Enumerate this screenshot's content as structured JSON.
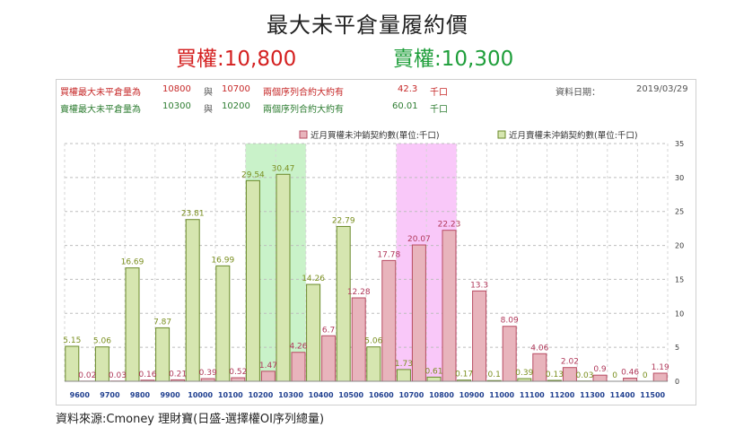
{
  "title": "最大未平倉量履約價",
  "subtitle_call": "買權:10,800",
  "subtitle_put": "賣權:10,300",
  "info": {
    "call_line": {
      "label": "買權最大未平倉量為",
      "v1": "10800",
      "mid": "與",
      "v2": "10700",
      "desc": "兩個序列合約大約有",
      "amount": "42.3",
      "unit": "千口"
    },
    "put_line": {
      "label": "賣權最大未平倉量為",
      "v1": "10300",
      "mid": "與",
      "v2": "10200",
      "desc": "兩個序列合約大約有",
      "amount": "60.01",
      "unit": "千口"
    },
    "date_label": "資料日期：",
    "date_value": "2019/03/29"
  },
  "source": "資料來源:Cmoney 理財寶(日盛-選擇權OI序列總量)",
  "colors": {
    "call_fill": "#e8b4bc",
    "call_stroke": "#b84c63",
    "put_fill": "#d6e6b0",
    "put_stroke": "#6a8a2a",
    "call_band": "#f9c8f9",
    "put_band": "#c9f2c9"
  },
  "chart_data": {
    "type": "bar",
    "categories": [
      "9600",
      "9700",
      "9800",
      "9900",
      "10000",
      "10100",
      "10200",
      "10300",
      "10400",
      "10500",
      "10600",
      "10700",
      "10800",
      "10900",
      "11000",
      "11100",
      "11200",
      "11300",
      "11400",
      "11500"
    ],
    "series": [
      {
        "name": "近月買權未沖銷契約數(單位:千口)",
        "values": [
          0.02,
          0.03,
          0.16,
          0.21,
          0.39,
          0.52,
          1.47,
          4.26,
          6.7,
          12.28,
          17.78,
          20.07,
          22.23,
          13.3,
          8.09,
          4.06,
          2.02,
          0.9,
          0.46,
          1.19
        ]
      },
      {
        "name": "近月賣權未沖銷契約數(單位:千口)",
        "values": [
          5.15,
          5.06,
          16.69,
          7.87,
          23.81,
          16.99,
          29.54,
          30.47,
          14.26,
          22.79,
          5.06,
          1.73,
          0.61,
          0.17,
          0.1,
          0.39,
          0.13,
          0.03,
          0,
          0
        ]
      }
    ],
    "ylim": [
      0,
      35
    ],
    "yticks": [
      "0",
      "5",
      "10",
      "15",
      "20",
      "25",
      "30",
      "35"
    ],
    "highlight_put": [
      "10200",
      "10300"
    ],
    "highlight_call": [
      "10700",
      "10800"
    ],
    "legend_position": "top-right",
    "grid": true
  }
}
